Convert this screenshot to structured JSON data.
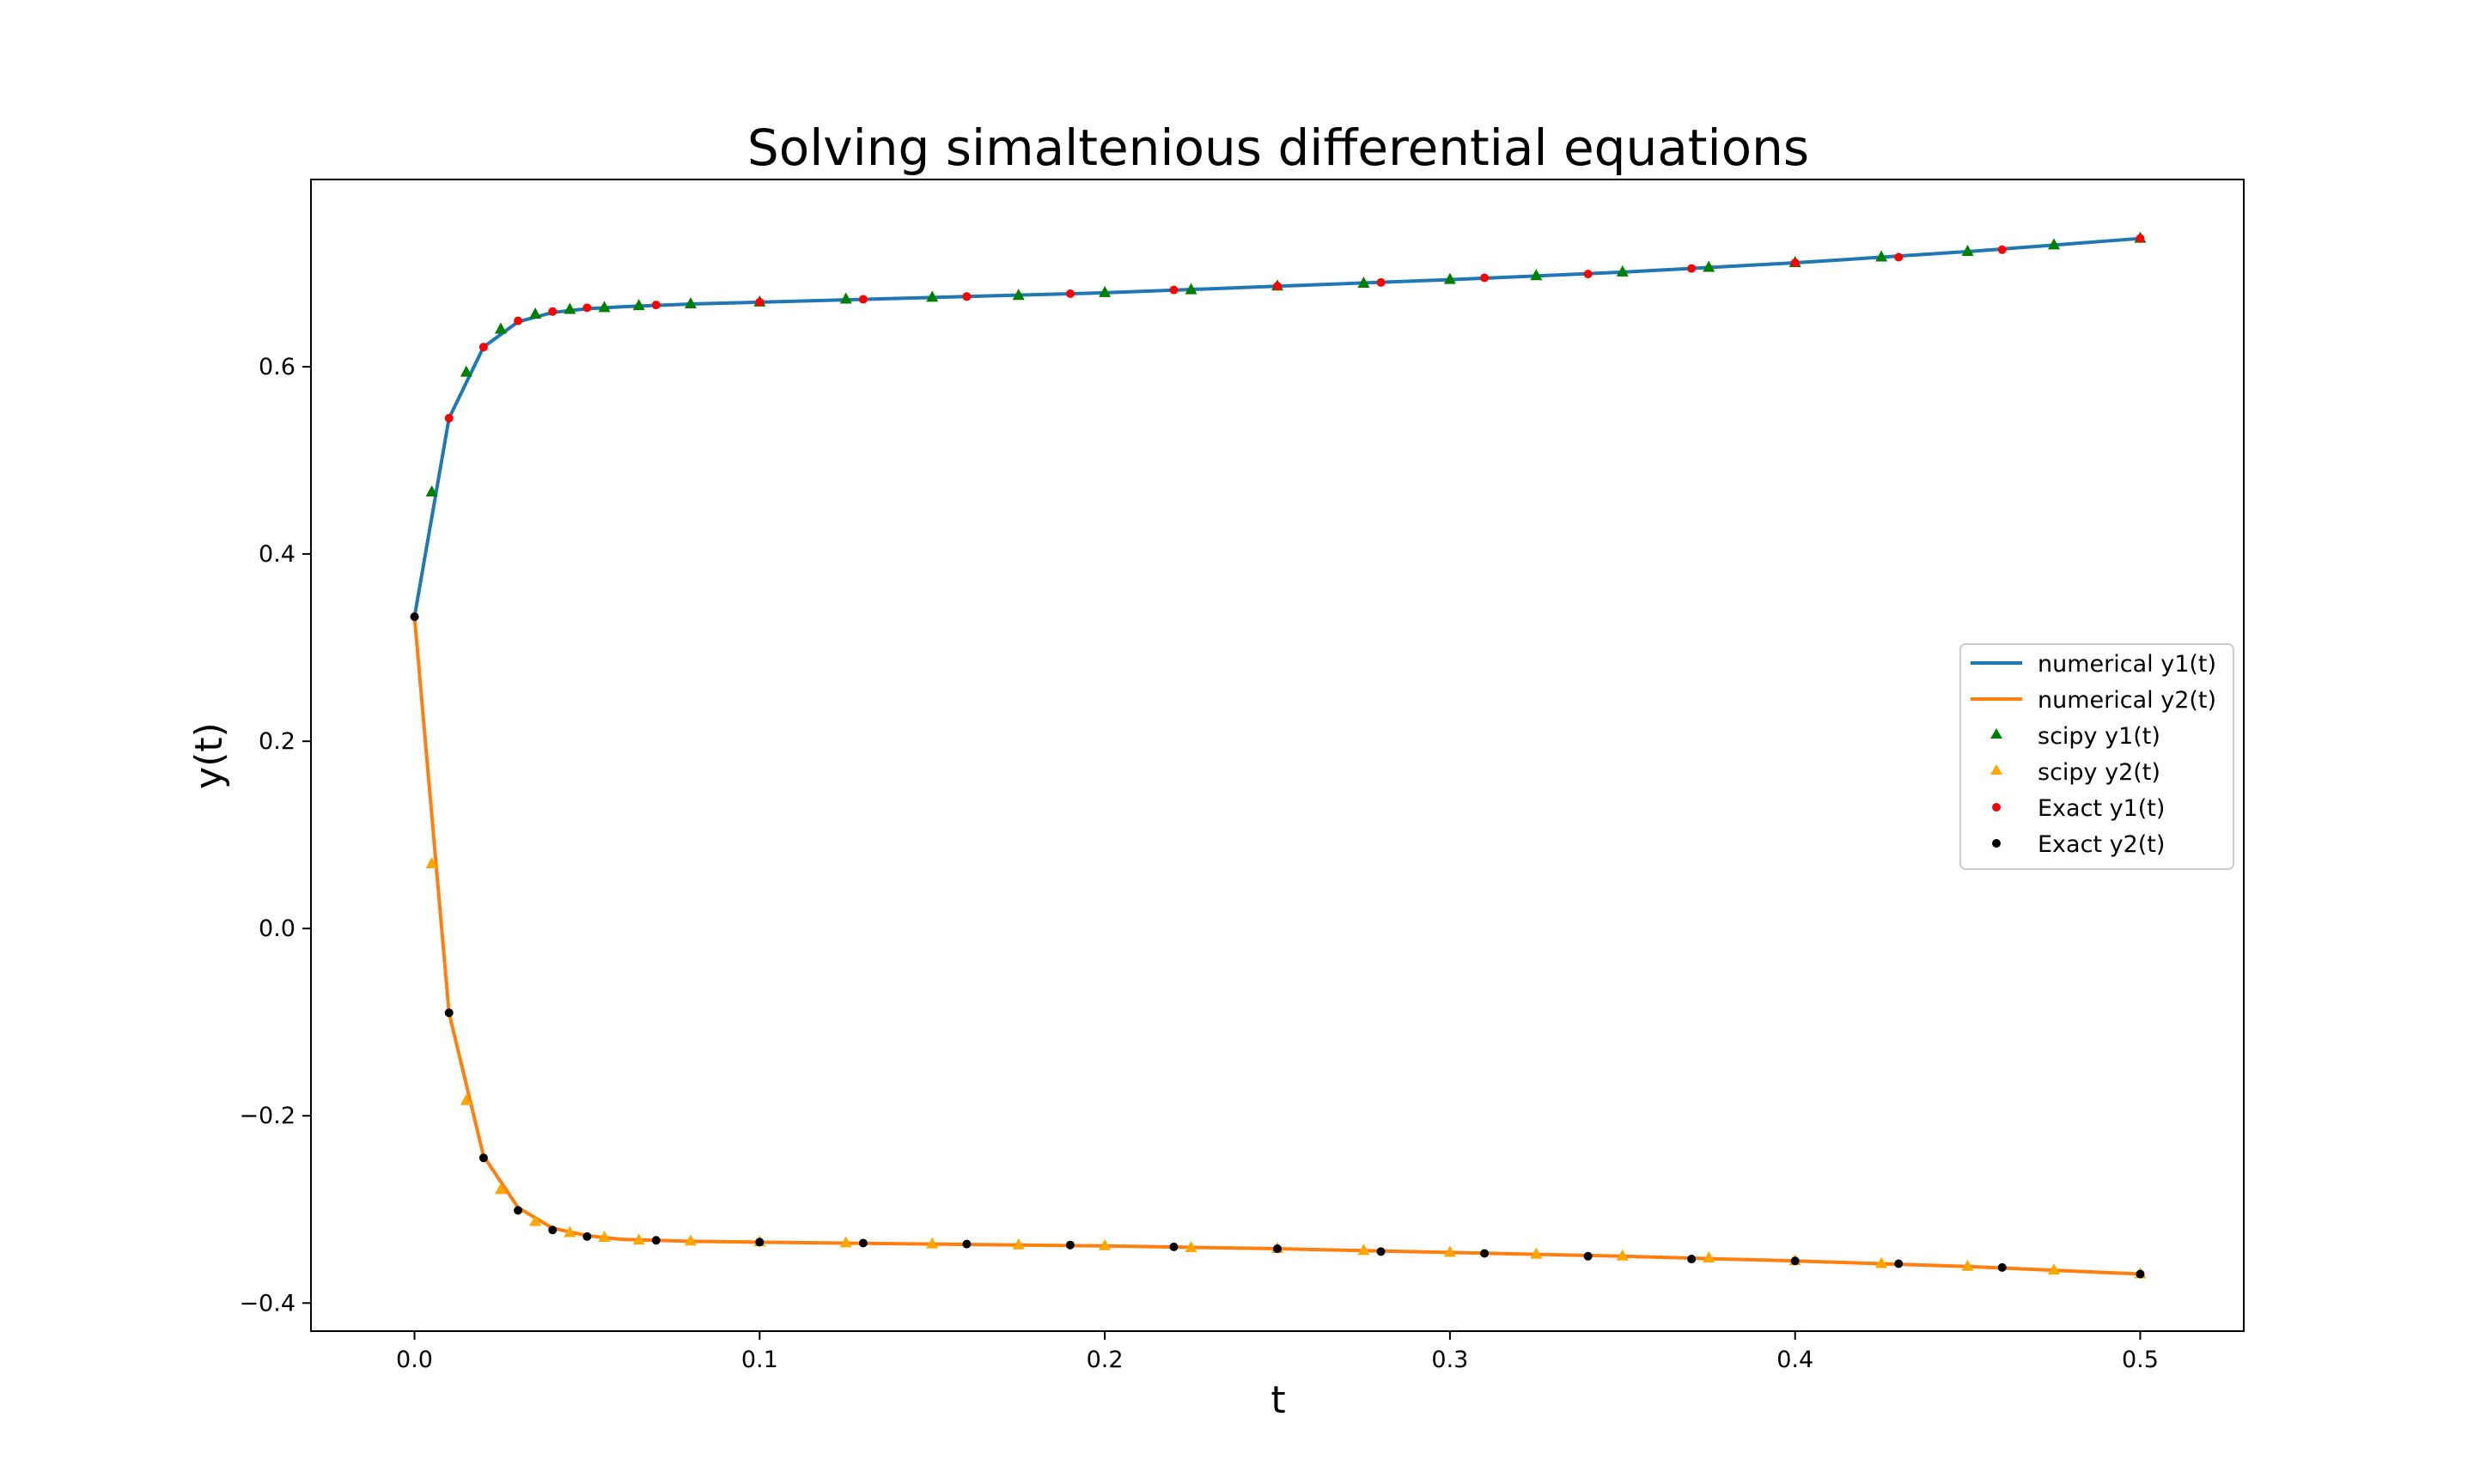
{
  "chart_data": {
    "type": "line",
    "title": "Solving simaltenious differential equations",
    "xlabel": "t",
    "ylabel": "y(t)",
    "xlim": [
      -0.03,
      0.53
    ],
    "ylim": [
      -0.43,
      0.8
    ],
    "xticks": [
      0.0,
      0.1,
      0.2,
      0.3,
      0.4,
      0.5
    ],
    "xtick_labels": [
      "0.0",
      "0.1",
      "0.2",
      "0.3",
      "0.4",
      "0.5"
    ],
    "yticks": [
      -0.4,
      -0.2,
      0.0,
      0.2,
      0.4,
      0.6
    ],
    "ytick_labels": [
      "−0.4",
      "−0.2",
      "0.0",
      "0.2",
      "0.4",
      "0.6"
    ],
    "grid": false,
    "legend_position": "center-right",
    "series": [
      {
        "name": "numerical y1(t)",
        "kind": "line",
        "color": "#1f77b4",
        "x": [
          0.0,
          0.01,
          0.02,
          0.03,
          0.04,
          0.05,
          0.06,
          0.08,
          0.1,
          0.15,
          0.2,
          0.25,
          0.3,
          0.35,
          0.4,
          0.45,
          0.5
        ],
        "y": [
          0.333,
          0.545,
          0.621,
          0.648,
          0.658,
          0.662,
          0.664,
          0.667,
          0.669,
          0.674,
          0.679,
          0.686,
          0.693,
          0.701,
          0.711,
          0.723,
          0.737
        ]
      },
      {
        "name": "numerical y2(t)",
        "kind": "line",
        "color": "#ff7f0e",
        "x": [
          0.0,
          0.01,
          0.02,
          0.03,
          0.04,
          0.05,
          0.06,
          0.08,
          0.1,
          0.15,
          0.2,
          0.25,
          0.3,
          0.35,
          0.4,
          0.45,
          0.5
        ],
        "y": [
          0.333,
          -0.09,
          -0.243,
          -0.298,
          -0.32,
          -0.328,
          -0.332,
          -0.334,
          -0.335,
          -0.337,
          -0.339,
          -0.342,
          -0.346,
          -0.35,
          -0.355,
          -0.361,
          -0.369
        ]
      },
      {
        "name": "scipy y1(t)",
        "kind": "scatter-triangle",
        "color": "#008000",
        "x": [
          0.005,
          0.015,
          0.025,
          0.035,
          0.045,
          0.055,
          0.065,
          0.08,
          0.1,
          0.125,
          0.15,
          0.175,
          0.2,
          0.225,
          0.25,
          0.275,
          0.3,
          0.325,
          0.35,
          0.375,
          0.4,
          0.425,
          0.45,
          0.475,
          0.5
        ],
        "y": [
          0.466,
          0.594,
          0.64,
          0.656,
          0.661,
          0.663,
          0.665,
          0.667,
          0.669,
          0.672,
          0.674,
          0.676,
          0.679,
          0.682,
          0.686,
          0.689,
          0.693,
          0.697,
          0.701,
          0.706,
          0.711,
          0.717,
          0.723,
          0.73,
          0.737
        ]
      },
      {
        "name": "scipy y2(t)",
        "kind": "scatter-triangle",
        "color": "#ffa500",
        "x": [
          0.005,
          0.015,
          0.025,
          0.035,
          0.045,
          0.055,
          0.065,
          0.08,
          0.1,
          0.125,
          0.15,
          0.175,
          0.2,
          0.225,
          0.25,
          0.275,
          0.3,
          0.325,
          0.35,
          0.375,
          0.4,
          0.425,
          0.45,
          0.475,
          0.5
        ],
        "y": [
          0.069,
          -0.184,
          -0.279,
          -0.313,
          -0.325,
          -0.33,
          -0.333,
          -0.334,
          -0.335,
          -0.336,
          -0.337,
          -0.338,
          -0.339,
          -0.341,
          -0.342,
          -0.344,
          -0.346,
          -0.348,
          -0.35,
          -0.352,
          -0.355,
          -0.358,
          -0.361,
          -0.365,
          -0.369
        ]
      },
      {
        "name": "Exact y1(t)",
        "kind": "scatter-dot",
        "color": "#ff0000",
        "x": [
          0.0,
          0.01,
          0.02,
          0.03,
          0.04,
          0.05,
          0.07,
          0.1,
          0.13,
          0.16,
          0.19,
          0.22,
          0.25,
          0.28,
          0.31,
          0.34,
          0.37,
          0.4,
          0.43,
          0.46,
          0.5
        ],
        "y": [
          0.333,
          0.545,
          0.621,
          0.649,
          0.659,
          0.663,
          0.666,
          0.669,
          0.672,
          0.675,
          0.678,
          0.682,
          0.686,
          0.69,
          0.695,
          0.699,
          0.705,
          0.711,
          0.717,
          0.725,
          0.737
        ]
      },
      {
        "name": "Exact y2(t)",
        "kind": "scatter-dot",
        "color": "#000000",
        "x": [
          0.0,
          0.01,
          0.02,
          0.03,
          0.04,
          0.05,
          0.07,
          0.1,
          0.13,
          0.16,
          0.19,
          0.22,
          0.25,
          0.28,
          0.31,
          0.34,
          0.37,
          0.4,
          0.43,
          0.46,
          0.5
        ],
        "y": [
          0.333,
          -0.09,
          -0.245,
          -0.301,
          -0.322,
          -0.329,
          -0.333,
          -0.335,
          -0.336,
          -0.337,
          -0.338,
          -0.34,
          -0.342,
          -0.345,
          -0.347,
          -0.35,
          -0.353,
          -0.355,
          -0.358,
          -0.362,
          -0.369
        ]
      }
    ]
  }
}
